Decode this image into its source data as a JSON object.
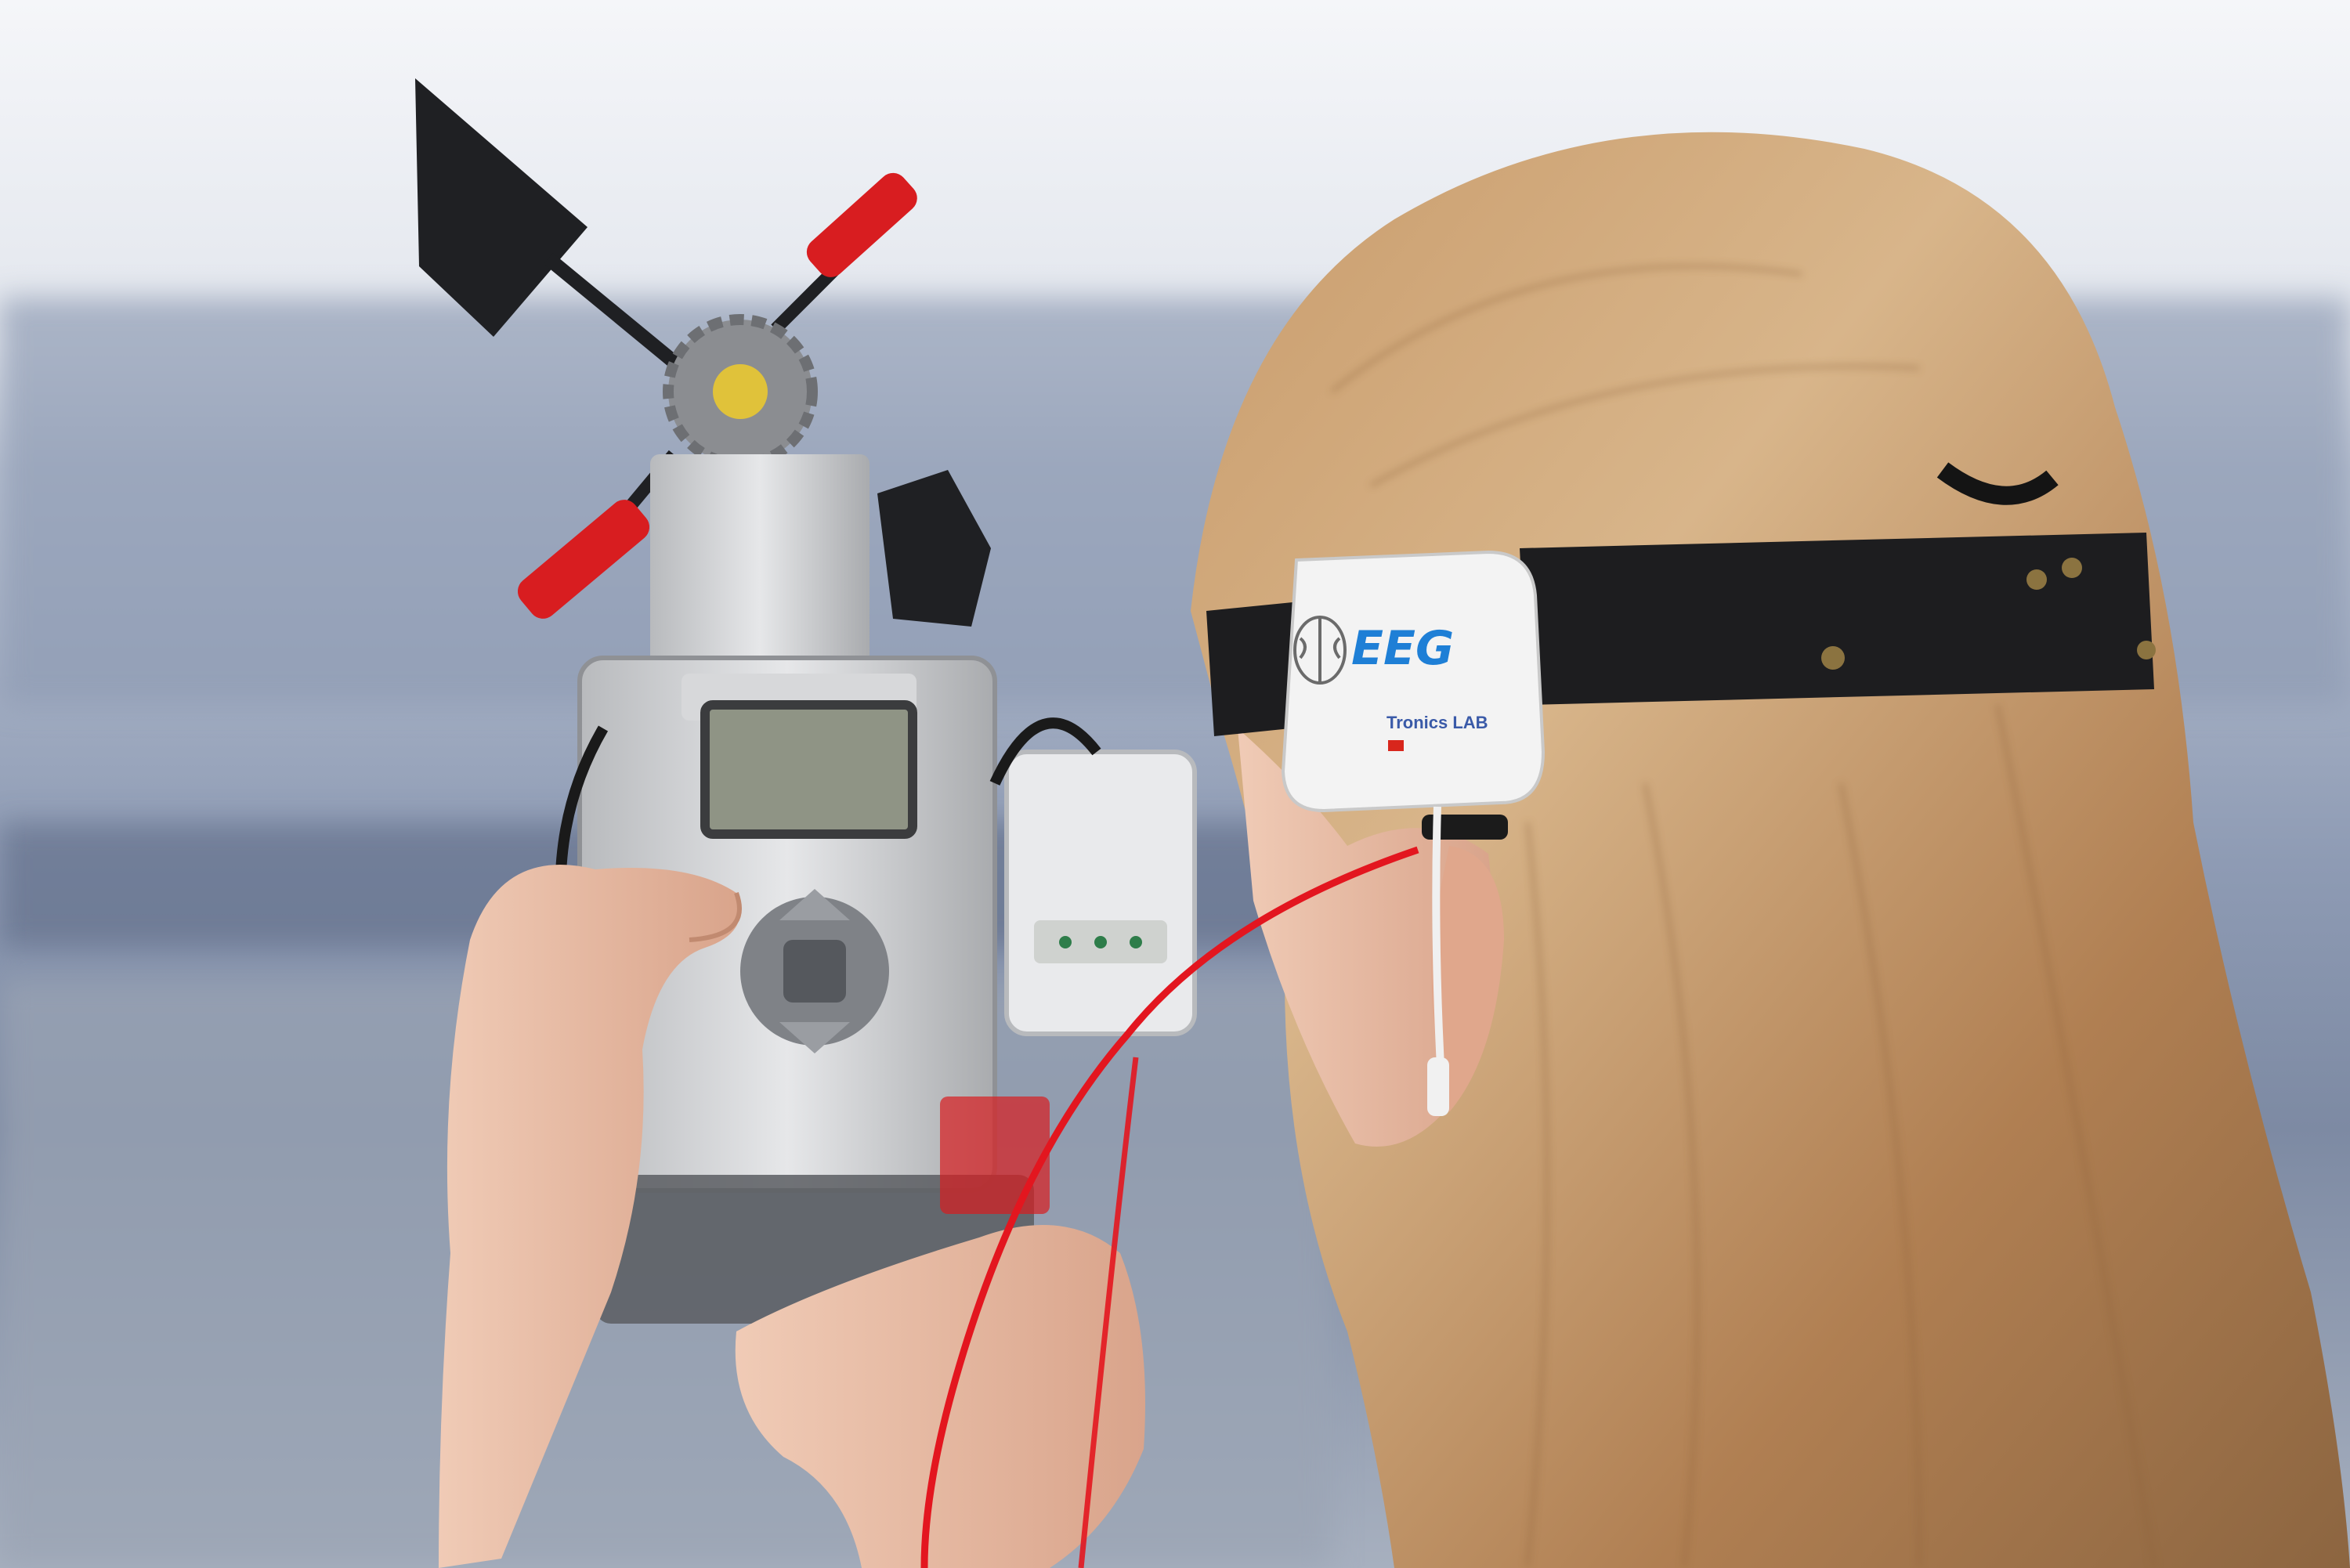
{
  "photo": {
    "device_label": "EEG",
    "device_brand": "Tronics LAB",
    "colors": {
      "sky_top": "#f2f4f8",
      "sky_band": "#e4e8ef",
      "background_water": "#9aa7bf",
      "hair_base": "#b9875a",
      "hair_light": "#d8b58a",
      "headband": "#1d1d1f",
      "device_body": "#f3f3f3",
      "eeg_blue": "#1e7fd6",
      "cable_red": "#e3161f",
      "lego_red": "#d81d20",
      "lego_grey": "#c9cbce",
      "lego_dark": "#222326",
      "screen": "#8f9485",
      "skin": "#e7b9a1"
    }
  }
}
